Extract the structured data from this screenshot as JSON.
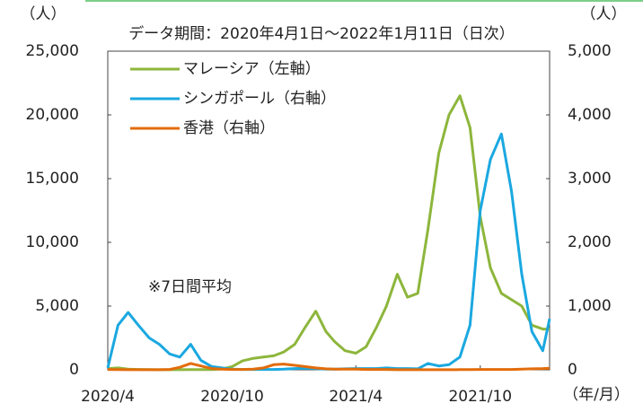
{
  "chart_data": {
    "type": "line",
    "title": "データ期間：2020年4月1日～2022年1月11日（日次）",
    "y_label": "（人）",
    "y2_label": "（人）",
    "x_label": "（年/月）",
    "annotation": "※7日間平均",
    "x": [
      "2020/4/1",
      "2020/4/16",
      "2020/5/1",
      "2020/5/16",
      "2020/6/1",
      "2020/6/16",
      "2020/7/1",
      "2020/7/16",
      "2020/8/1",
      "2020/8/16",
      "2020/9/1",
      "2020/9/16",
      "2020/10/1",
      "2020/10/16",
      "2020/11/1",
      "2020/11/16",
      "2020/12/1",
      "2020/12/16",
      "2021/1/1",
      "2021/1/16",
      "2021/2/1",
      "2021/2/16",
      "2021/3/1",
      "2021/3/16",
      "2021/4/1",
      "2021/4/16",
      "2021/5/1",
      "2021/5/16",
      "2021/6/1",
      "2021/6/16",
      "2021/7/1",
      "2021/7/16",
      "2021/8/1",
      "2021/8/16",
      "2021/9/1",
      "2021/9/16",
      "2021/10/1",
      "2021/10/16",
      "2021/11/1",
      "2021/11/16",
      "2021/12/1",
      "2021/12/16",
      "2022/1/1",
      "2022/1/11"
    ],
    "xlim": [
      "2020/4/1",
      "2022/1/11"
    ],
    "xticks": [
      "2020/4",
      "2020/10",
      "2021/4",
      "2021/10"
    ],
    "ylim": [
      0,
      25000
    ],
    "yticks": [
      {
        "value": 0,
        "label": "0"
      },
      {
        "value": 5000,
        "label": "5,000"
      },
      {
        "value": 10000,
        "label": "10,000"
      },
      {
        "value": 15000,
        "label": "15,000"
      },
      {
        "value": 20000,
        "label": "20,000"
      },
      {
        "value": 25000,
        "label": "25,000"
      }
    ],
    "y2lim": [
      0,
      5000
    ],
    "y2ticks": [
      {
        "value": 0,
        "label": "0"
      },
      {
        "value": 1000,
        "label": "1,000"
      },
      {
        "value": 2000,
        "label": "2,000"
      },
      {
        "value": 3000,
        "label": "3,000"
      },
      {
        "value": 4000,
        "label": "4,000"
      },
      {
        "value": 5000,
        "label": "5,000"
      }
    ],
    "legend": "upper left",
    "series": [
      {
        "name": "マレーシア（左軸）",
        "color": "#8db63c",
        "axis": "y",
        "values": [
          100,
          150,
          50,
          30,
          20,
          10,
          5,
          10,
          15,
          20,
          20,
          60,
          250,
          700,
          900,
          1000,
          1100,
          1400,
          2000,
          3300,
          4600,
          3000,
          2200,
          1500,
          1300,
          1800,
          3300,
          5000,
          7500,
          5700,
          6000,
          11000,
          17000,
          20000,
          21500,
          19000,
          12000,
          8000,
          6000,
          5500,
          5000,
          3500,
          3200,
          3200
        ]
      },
      {
        "name": "シンガポール（右軸）",
        "color": "#1aa8e0",
        "axis": "y2",
        "values": [
          30,
          700,
          900,
          700,
          500,
          400,
          250,
          200,
          400,
          150,
          50,
          30,
          10,
          5,
          5,
          5,
          5,
          10,
          20,
          25,
          20,
          10,
          10,
          15,
          20,
          20,
          20,
          30,
          20,
          20,
          15,
          100,
          60,
          80,
          200,
          700,
          2500,
          3300,
          3700,
          2800,
          1500,
          600,
          300,
          800
        ]
      },
      {
        "name": "香港（右軸）",
        "color": "#e36c0a",
        "axis": "y2",
        "values": [
          5,
          3,
          1,
          1,
          1,
          1,
          5,
          40,
          100,
          60,
          20,
          10,
          5,
          5,
          10,
          30,
          80,
          90,
          70,
          50,
          30,
          15,
          10,
          10,
          10,
          5,
          5,
          5,
          2,
          2,
          2,
          2,
          2,
          2,
          3,
          3,
          5,
          5,
          5,
          5,
          10,
          15,
          20,
          25
        ]
      }
    ]
  }
}
